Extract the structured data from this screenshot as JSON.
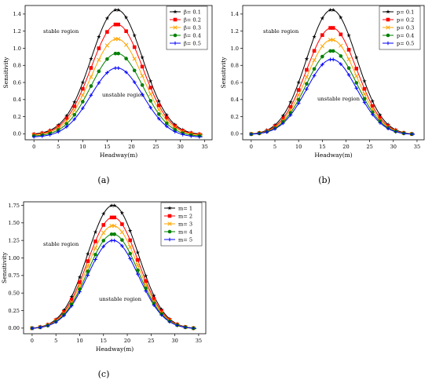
{
  "chart_data": [
    {
      "type": "line",
      "panel_label": "(a)",
      "xlabel": "Headway(m)",
      "ylabel": "Sensitivity",
      "xlim": [
        -1.8,
        36.5
      ],
      "ylim": [
        -0.07,
        1.5
      ],
      "xticks": [
        0,
        5,
        10,
        15,
        20,
        25,
        30,
        35
      ],
      "yticks": [
        0.0,
        0.2,
        0.4,
        0.6,
        0.8,
        1.0,
        1.2,
        1.4
      ],
      "ytick_decimals": 1,
      "annotations": [
        "stable region",
        "unstable region"
      ],
      "legend_position": "top-right",
      "grid": false,
      "series": [
        {
          "name": "β= 0.1",
          "color": "#000000",
          "marker": "star",
          "peak": 1.45,
          "base": -0.01
        },
        {
          "name": "β= 0.2",
          "color": "#ff0000",
          "marker": "square",
          "peak": 1.28,
          "base": -0.015
        },
        {
          "name": "β= 0.3",
          "color": "#ffa500",
          "marker": "x",
          "peak": 1.11,
          "base": -0.02
        },
        {
          "name": "β= 0.4",
          "color": "#008000",
          "marker": "circle",
          "peak": 0.94,
          "base": -0.03
        },
        {
          "name": "β= 0.5",
          "color": "#0000ff",
          "marker": "plus",
          "peak": 0.77,
          "base": -0.04
        }
      ]
    },
    {
      "type": "line",
      "panel_label": "(b)",
      "xlabel": "Headway(m)",
      "ylabel": "Sensitivity",
      "xlim": [
        -1.8,
        36.5
      ],
      "ylim": [
        -0.07,
        1.5
      ],
      "xticks": [
        0,
        5,
        10,
        15,
        20,
        25,
        30,
        35
      ],
      "yticks": [
        0.0,
        0.2,
        0.4,
        0.6,
        0.8,
        1.0,
        1.2,
        1.4
      ],
      "ytick_decimals": 1,
      "annotations": [
        "stable region",
        "unstable region"
      ],
      "legend_position": "top-right",
      "grid": false,
      "series": [
        {
          "name": "p= 0.1",
          "color": "#000000",
          "marker": "star",
          "peak": 1.45,
          "base": -0.01
        },
        {
          "name": "p= 0.2",
          "color": "#ff0000",
          "marker": "square",
          "peak": 1.24,
          "base": -0.01
        },
        {
          "name": "p= 0.3",
          "color": "#ffa500",
          "marker": "x",
          "peak": 1.1,
          "base": -0.01
        },
        {
          "name": "p= 0.4",
          "color": "#008000",
          "marker": "circle",
          "peak": 0.97,
          "base": -0.01
        },
        {
          "name": "p= 0.5",
          "color": "#0000ff",
          "marker": "plus",
          "peak": 0.87,
          "base": -0.01
        }
      ]
    },
    {
      "type": "line",
      "panel_label": "(c)",
      "xlabel": "Headway(m)",
      "ylabel": "Sensitivity",
      "xlim": [
        -1.8,
        36.5
      ],
      "ylim": [
        -0.08,
        1.8
      ],
      "xticks": [
        0,
        5,
        10,
        15,
        20,
        25,
        30,
        35
      ],
      "yticks": [
        0.0,
        0.25,
        0.5,
        0.75,
        1.0,
        1.25,
        1.5,
        1.75
      ],
      "ytick_decimals": 2,
      "annotations": [
        "stable region",
        "unstable region"
      ],
      "legend_position": "top-right",
      "grid": false,
      "series": [
        {
          "name": "m= 1",
          "color": "#000000",
          "marker": "star",
          "peak": 1.75,
          "base": -0.01
        },
        {
          "name": "m= 2",
          "color": "#ff0000",
          "marker": "square",
          "peak": 1.58,
          "base": -0.01
        },
        {
          "name": "m= 3",
          "color": "#ffa500",
          "marker": "x",
          "peak": 1.46,
          "base": -0.01
        },
        {
          "name": "m= 4",
          "color": "#008000",
          "marker": "circle",
          "peak": 1.34,
          "base": -0.01
        },
        {
          "name": "m= 5",
          "color": "#0000ff",
          "marker": "plus",
          "peak": 1.25,
          "base": -0.01
        }
      ]
    }
  ]
}
